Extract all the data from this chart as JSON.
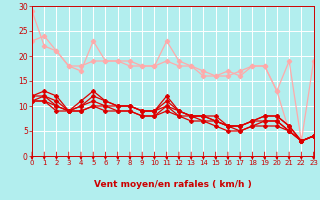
{
  "background_color": "#b2eeee",
  "grid_color": "#ffffff",
  "xlabel": "Vent moyen/en rafales ( km/h )",
  "xlabel_color": "#cc0000",
  "tick_color": "#cc0000",
  "xlim": [
    0,
    23
  ],
  "ylim": [
    0,
    30
  ],
  "yticks": [
    0,
    5,
    10,
    15,
    20,
    25,
    30
  ],
  "xticks": [
    0,
    1,
    2,
    3,
    4,
    5,
    6,
    7,
    8,
    9,
    10,
    11,
    12,
    13,
    14,
    15,
    16,
    17,
    18,
    19,
    20,
    21,
    22,
    23
  ],
  "light_color": "#ffaaaa",
  "dark_color": "#dd0000",
  "lines_light": [
    [
      23,
      24,
      21,
      18,
      17,
      23,
      19,
      19,
      19,
      18,
      18,
      23,
      19,
      18,
      17,
      16,
      16,
      17,
      18,
      18,
      13,
      19,
      3,
      19
    ],
    [
      29,
      22,
      21,
      18,
      18,
      19,
      19,
      19,
      18,
      18,
      18,
      19,
      18,
      18,
      16,
      16,
      17,
      16,
      18,
      18,
      13,
      5,
      3,
      4
    ]
  ],
  "lines_dark": [
    [
      12,
      13,
      12,
      9,
      11,
      13,
      11,
      10,
      10,
      9,
      9,
      12,
      9,
      8,
      8,
      8,
      6,
      6,
      7,
      8,
      8,
      6,
      3,
      4
    ],
    [
      12,
      12,
      11,
      9,
      10,
      12,
      11,
      10,
      10,
      9,
      9,
      11,
      9,
      8,
      8,
      7,
      6,
      6,
      7,
      8,
      8,
      6,
      3,
      4
    ],
    [
      11,
      12,
      10,
      9,
      10,
      11,
      10,
      10,
      10,
      9,
      9,
      10,
      9,
      8,
      8,
      7,
      6,
      6,
      7,
      7,
      7,
      5,
      3,
      4
    ],
    [
      11,
      11,
      10,
      9,
      9,
      10,
      10,
      9,
      9,
      8,
      8,
      10,
      8,
      8,
      7,
      7,
      6,
      5,
      6,
      7,
      7,
      5,
      3,
      4
    ],
    [
      11,
      11,
      9,
      9,
      9,
      10,
      9,
      9,
      9,
      8,
      8,
      9,
      8,
      7,
      7,
      6,
      5,
      5,
      6,
      6,
      6,
      5,
      3,
      4
    ]
  ]
}
